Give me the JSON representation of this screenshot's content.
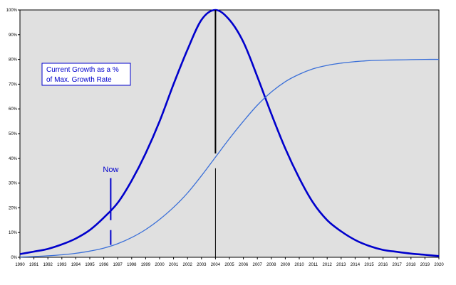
{
  "chart_data": {
    "type": "line",
    "title": "",
    "xlabel": "",
    "ylabel": "",
    "x_ticks": [
      "1990",
      "1991",
      "1992",
      "1993",
      "1994",
      "1995",
      "1996",
      "1997",
      "1998",
      "1999",
      "2000",
      "2001",
      "2002",
      "2003",
      "2004",
      "2005",
      "2006",
      "2007",
      "2008",
      "2009",
      "2010",
      "2011",
      "2012",
      "2013",
      "2014",
      "2015",
      "2016",
      "2017",
      "2018",
      "2019",
      "2020"
    ],
    "y_ticks": [
      "0%",
      "10%",
      "20%",
      "30%",
      "40%",
      "50%",
      "60%",
      "70%",
      "80%",
      "90%",
      "100%"
    ],
    "xlim": [
      1990,
      2020
    ],
    "ylim": [
      0,
      100
    ],
    "grid": false,
    "plot_background": "#e0e0e0",
    "series": [
      {
        "name": "Current Growth as a % of Max. Growth Rate",
        "color": "#0000cc",
        "x": [
          1990,
          1991,
          1992,
          1993,
          1994,
          1995,
          1996,
          1997,
          1998,
          1999,
          2000,
          2001,
          2002,
          2003,
          2004,
          2005,
          2006,
          2007,
          2008,
          2009,
          2010,
          2011,
          2012,
          2013,
          2014,
          2015,
          2016,
          2017,
          2018,
          2019,
          2020
        ],
        "y": [
          1.3,
          2.3,
          3.4,
          5.2,
          7.6,
          11,
          16,
          22,
          31,
          42,
          55,
          70,
          84,
          96,
          100,
          96,
          87,
          73,
          58,
          44,
          32,
          22,
          15,
          10.5,
          7,
          4.6,
          3,
          2.2,
          1.5,
          1,
          0.5
        ]
      },
      {
        "name": "",
        "color": "#3a6fd8",
        "x": [
          1990,
          1991,
          1992,
          1993,
          1994,
          1995,
          1996,
          1997,
          1998,
          1999,
          2000,
          2001,
          2002,
          2003,
          2004,
          2005,
          2006,
          2007,
          2008,
          2009,
          2010,
          2011,
          2012,
          2013,
          2014,
          2015,
          2016,
          2017,
          2018,
          2019,
          2020
        ],
        "y": [
          0.1,
          0.3,
          0.6,
          1.0,
          1.6,
          2.5,
          3.7,
          5.5,
          8,
          11.2,
          15.3,
          20.2,
          26,
          33,
          40.5,
          48,
          55,
          61.5,
          66.8,
          71,
          74,
          76.2,
          77.6,
          78.5,
          79.1,
          79.5,
          79.7,
          79.8,
          79.9,
          80,
          80
        ]
      }
    ],
    "annotations": [
      {
        "type": "vline",
        "x": 2004,
        "color": "#000000"
      },
      {
        "type": "vline",
        "x": 1996.5,
        "color": "#0000cc",
        "label": "Now"
      }
    ],
    "legend": {
      "lines": [
        "Current Growth as a %",
        "of Max. Growth Rate"
      ],
      "placement": "left"
    }
  }
}
